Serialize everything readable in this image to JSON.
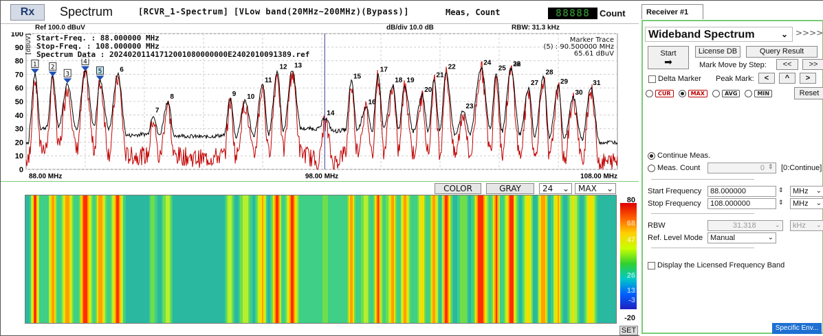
{
  "header": {
    "rx": "Rx",
    "title": "Spectrum",
    "desc": "[RCVR_1-Spectrum] [VLow band(20MHz~200MHz)(Bypass)]",
    "meas": "Meas, Count",
    "count_display": "88888",
    "count_label": "Count"
  },
  "subheader": {
    "ref": "Ref 100.0 dBuV",
    "div": "dB/div 10.0 dB",
    "rbw": "RBW: 31.3 kHz"
  },
  "spectrum": {
    "yunit": "[dBuV]",
    "start": "Start-Freq. : 88.000000 MHz",
    "stop": "Stop-Freq. : 108.000000 MHz",
    "data": "Spectrum Data : 20240201141712001080000000E2402010091389.ref",
    "marker_title": "Marker Trace",
    "marker_val": "(5) : 90.500000 MHz",
    "marker_level": "65.61 dBuV",
    "x_labels": [
      "88.00 MHz",
      "98.00 MHz",
      "108.00 MHz"
    ],
    "y_labels": [
      "100",
      "90",
      "80",
      "70",
      "60",
      "50",
      "40",
      "30",
      "20",
      "10",
      "0"
    ],
    "markers": [
      "1",
      "2",
      "3",
      "4",
      "5"
    ],
    "peak_labels": [
      "6",
      "7",
      "8",
      "9",
      "10",
      "11",
      "12",
      "13",
      "14",
      "15",
      "16",
      "17",
      "18",
      "19",
      "20",
      "21",
      "22",
      "23",
      "24",
      "25",
      "26",
      "27",
      "28",
      "29",
      "30",
      "31",
      "32"
    ],
    "colors": {
      "maxhold": "#000000",
      "current": "#c00000",
      "marker": "#1f4fb3",
      "cursor": "#3a3a8f"
    }
  },
  "chart_data": {
    "type": "line",
    "xlabel": "",
    "ylabel": "[dBuV]",
    "xlim": [
      88.0,
      108.0
    ],
    "ylim": [
      0,
      100
    ],
    "grid": true,
    "series": [
      {
        "values": [
          [
            88.1,
            30
          ],
          [
            88.3,
            70
          ],
          [
            88.5,
            30
          ],
          [
            88.7,
            31
          ],
          [
            88.9,
            68
          ],
          [
            89.1,
            32
          ],
          [
            89.4,
            63
          ],
          [
            89.7,
            30
          ],
          [
            90.0,
            72
          ],
          [
            90.3,
            32
          ],
          [
            90.5,
            65
          ],
          [
            90.8,
            30
          ],
          [
            91.1,
            70
          ],
          [
            91.4,
            25
          ],
          [
            92.1,
            26
          ],
          [
            92.3,
            40
          ],
          [
            92.5,
            25
          ],
          [
            92.8,
            50
          ],
          [
            93.0,
            25
          ],
          [
            94.0,
            24
          ],
          [
            94.7,
            25
          ],
          [
            94.9,
            52
          ],
          [
            95.1,
            24
          ],
          [
            95.4,
            50
          ],
          [
            95.7,
            25
          ],
          [
            96.0,
            62
          ],
          [
            96.2,
            26
          ],
          [
            96.5,
            72
          ],
          [
            96.7,
            28
          ],
          [
            97.0,
            73
          ],
          [
            97.3,
            30
          ],
          [
            97.9,
            30
          ],
          [
            98.1,
            38
          ],
          [
            98.4,
            28
          ],
          [
            98.8,
            29
          ],
          [
            99.0,
            65
          ],
          [
            99.2,
            29
          ],
          [
            99.5,
            46
          ],
          [
            99.7,
            28
          ],
          [
            99.9,
            70
          ],
          [
            100.1,
            30
          ],
          [
            100.4,
            62
          ],
          [
            100.6,
            30
          ],
          [
            100.8,
            62
          ],
          [
            101.1,
            28
          ],
          [
            101.4,
            55
          ],
          [
            101.6,
            28
          ],
          [
            101.8,
            66
          ],
          [
            102.0,
            28
          ],
          [
            102.2,
            72
          ],
          [
            102.5,
            26
          ],
          [
            102.8,
            43
          ],
          [
            103.0,
            26
          ],
          [
            103.4,
            75
          ],
          [
            103.7,
            30
          ],
          [
            103.9,
            71
          ],
          [
            104.1,
            28
          ],
          [
            104.4,
            74
          ],
          [
            104.7,
            26
          ],
          [
            105.0,
            60
          ],
          [
            105.2,
            24
          ],
          [
            105.5,
            68
          ],
          [
            105.7,
            24
          ],
          [
            106.0,
            61
          ],
          [
            106.2,
            22
          ],
          [
            106.5,
            53
          ],
          [
            106.8,
            22
          ],
          [
            107.1,
            60
          ],
          [
            107.4,
            20
          ],
          [
            108.0,
            20
          ]
        ]
      },
      {
        "values": [
          [
            88.1,
            12
          ],
          [
            88.3,
            66
          ],
          [
            88.5,
            15
          ],
          [
            88.7,
            18
          ],
          [
            88.9,
            65
          ],
          [
            89.1,
            16
          ],
          [
            89.4,
            60
          ],
          [
            89.7,
            14
          ],
          [
            90.0,
            69
          ],
          [
            90.3,
            15
          ],
          [
            90.5,
            64
          ],
          [
            90.8,
            12
          ],
          [
            91.1,
            67
          ],
          [
            91.4,
            10
          ],
          [
            92.1,
            10
          ],
          [
            92.3,
            37
          ],
          [
            92.5,
            8
          ],
          [
            92.8,
            47
          ],
          [
            93.0,
            10
          ],
          [
            94.0,
            8
          ],
          [
            94.7,
            10
          ],
          [
            94.9,
            50
          ],
          [
            95.1,
            9
          ],
          [
            95.4,
            48
          ],
          [
            95.7,
            10
          ],
          [
            96.0,
            60
          ],
          [
            96.2,
            12
          ],
          [
            96.5,
            70
          ],
          [
            96.7,
            14
          ],
          [
            97.0,
            71
          ],
          [
            97.3,
            12
          ],
          [
            97.9,
            6
          ],
          [
            98.1,
            35
          ],
          [
            98.4,
            5
          ],
          [
            98.8,
            12
          ],
          [
            99.0,
            62
          ],
          [
            99.2,
            14
          ],
          [
            99.5,
            44
          ],
          [
            99.7,
            12
          ],
          [
            99.9,
            68
          ],
          [
            100.1,
            14
          ],
          [
            100.4,
            60
          ],
          [
            100.6,
            14
          ],
          [
            100.8,
            60
          ],
          [
            101.1,
            12
          ],
          [
            101.4,
            53
          ],
          [
            101.6,
            12
          ],
          [
            101.8,
            64
          ],
          [
            102.0,
            12
          ],
          [
            102.2,
            70
          ],
          [
            102.5,
            10
          ],
          [
            102.8,
            41
          ],
          [
            103.0,
            10
          ],
          [
            103.4,
            73
          ],
          [
            103.7,
            14
          ],
          [
            103.9,
            69
          ],
          [
            104.1,
            12
          ],
          [
            104.4,
            72
          ],
          [
            104.7,
            10
          ],
          [
            105.0,
            58
          ],
          [
            105.2,
            8
          ],
          [
            105.5,
            66
          ],
          [
            105.7,
            8
          ],
          [
            106.0,
            59
          ],
          [
            106.2,
            6
          ],
          [
            106.5,
            51
          ],
          [
            106.8,
            6
          ],
          [
            107.1,
            58
          ],
          [
            107.4,
            5
          ],
          [
            108.0,
            6
          ]
        ]
      }
    ]
  },
  "waterfall": {
    "btn_color": "COLOR",
    "btn_gray": "GRAY",
    "sel_count": "24",
    "sel_mode": "MAX",
    "scale": [
      "80",
      "68",
      "47",
      "26",
      "13",
      "-3",
      "-20"
    ],
    "set": "SET"
  },
  "panel": {
    "tab": "Receiver #1",
    "mode": "Wideband Spectrum",
    "arrows": ">>>>>>>>",
    "start": "Start",
    "license_db": "License DB",
    "query": "Query Result",
    "mark_move": "Mark Move by Step:",
    "prev": "<<",
    "next": ">>",
    "delta": "Delta Marker",
    "peak": "Peak Mark:",
    "peak_btns": [
      "<",
      "^",
      ">"
    ],
    "trace_modes": [
      "CUR",
      "MAX",
      "AVG",
      "MIN"
    ],
    "reset": "Reset",
    "continue": "Continue Meas.",
    "meas_count": "Meas. Count",
    "meas_count_val": "0",
    "meas_hint": "[0:Continue]",
    "start_freq_label": "Start Frequency",
    "start_freq": "88.000000",
    "start_unit": "MHz",
    "stop_freq_label": "Stop Frequency",
    "stop_freq": "108.000000",
    "stop_unit": "MHz",
    "rbw_label": "RBW",
    "rbw": "31.318",
    "rbw_unit": "kHz",
    "ref_mode_label": "Ref. Level Mode",
    "ref_mode": "Manual",
    "licensed": "Display the Licensed Frequency Band",
    "specific_env": "Specific Env..."
  }
}
